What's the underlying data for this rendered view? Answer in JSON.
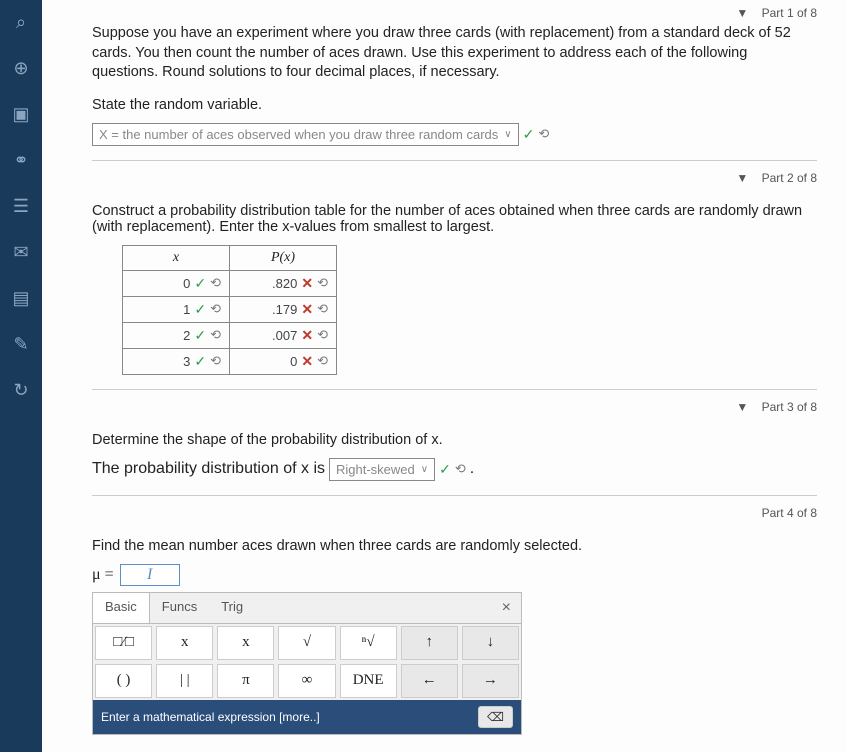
{
  "sidebar": {
    "items": [
      {
        "name": "search-icon",
        "glyph": "⌕"
      },
      {
        "name": "globe-icon",
        "glyph": "⊕"
      },
      {
        "name": "panel-icon",
        "glyph": "▣"
      },
      {
        "name": "people-icon",
        "glyph": "⚭"
      },
      {
        "name": "list-icon",
        "glyph": "☰"
      },
      {
        "name": "mail-icon",
        "glyph": "✉"
      },
      {
        "name": "notes-icon",
        "glyph": "▤"
      },
      {
        "name": "edit-icon",
        "glyph": "✎"
      },
      {
        "name": "refresh-icon",
        "glyph": "↻"
      }
    ]
  },
  "parts": {
    "p1": {
      "label": "Part 1 of 8"
    },
    "p2": {
      "label": "Part 2 of 8"
    },
    "p3": {
      "label": "Part 3 of 8"
    },
    "p4": {
      "label": "Part 4 of 8"
    }
  },
  "q1": {
    "text": "Suppose you have an experiment where you draw three cards (with replacement) from a standard deck of 52 cards. You then count the number of aces drawn. Use this experiment to address each of the following questions. Round solutions to four decimal places, if necessary.",
    "prompt": "State the random variable.",
    "answer": "X = the number of aces observed when you draw three random cards"
  },
  "q2": {
    "prompt": "Construct a probability distribution table for the number of aces obtained when three cards are randomly drawn (with replacement). Enter the x-values from smallest to largest.",
    "headers": {
      "x": "x",
      "px": "P(x)"
    },
    "rows": [
      {
        "x": "0",
        "xok": true,
        "p": ".820",
        "pok": false
      },
      {
        "x": "1",
        "xok": true,
        "p": ".179",
        "pok": false
      },
      {
        "x": "2",
        "xok": true,
        "p": ".007",
        "pok": false
      },
      {
        "x": "3",
        "xok": true,
        "p": "0",
        "pok": false
      }
    ]
  },
  "q3": {
    "prompt": "Determine the shape of the probability distribution of x.",
    "sentence_pre": "The probability distribution of x is ",
    "answer": "Right-skewed",
    "period": "."
  },
  "q4": {
    "prompt": "Find the mean number aces drawn when three cards are randomly selected.",
    "mu": "μ =",
    "cursor": "I"
  },
  "keypad": {
    "tabs": {
      "basic": "Basic",
      "funcs": "Funcs",
      "trig": "Trig"
    },
    "row1": [
      "□⁄□",
      "x",
      "x",
      "√",
      "ⁿ√",
      "↑",
      "↓"
    ],
    "row2": [
      "( )",
      "| |",
      "π",
      "∞",
      "DNE",
      "←",
      "→"
    ],
    "enter": "Enter a mathematical expression [more..]",
    "bksp": "⌫"
  },
  "marks": {
    "check": "✓",
    "cross": "✕",
    "retry": "⟲",
    "chev": "∨",
    "tri": "▼"
  }
}
